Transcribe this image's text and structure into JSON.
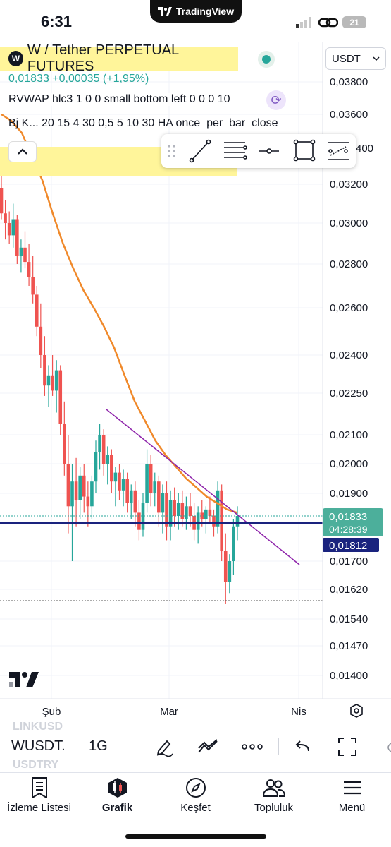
{
  "status_bar": {
    "time": "6:31",
    "app_pill": "TradingView",
    "battery": "21"
  },
  "header": {
    "title": "W / Tether PERPETUAL FUTURES",
    "title_icon": "W",
    "price": "0,01833",
    "change": "+0,00035 (+1,95%)",
    "indicator_1": "RVWAP hlc3 1 0 0 small bottom left 0 0 0 10",
    "indicator_2": "Bj K...  20 15 4 30 0,5 5 10 30 HA once_per_bar_close",
    "currency": "USDT"
  },
  "price_axis": {
    "labels": [
      "0,03800",
      "0,03600",
      "0,03200",
      "0,03000",
      "0,02800",
      "0,02600",
      "0,02400",
      "0,02250",
      "0,02100",
      "0,02000",
      "0,01900",
      "0,01700",
      "0,01620",
      "0,01540",
      "0,01470",
      "0,01400"
    ],
    "partial_label": "400",
    "current_price": "0,01833",
    "countdown": "04:28:39",
    "line_price": "0,01812"
  },
  "time_axis": {
    "labels": [
      "Şub",
      "Mar",
      "Nis"
    ]
  },
  "colors": {
    "up": "#26a69a",
    "down": "#ef5350",
    "ema": "#f0892a",
    "trendline": "#8e24aa",
    "hline": "#1a237e",
    "highlight": "#fff59a"
  },
  "drawing_toolbar": {
    "icons": [
      "drag-handle-icon",
      "trend-line-icon",
      "fib-lines-icon",
      "horizontal-ray-icon",
      "rectangle-icon",
      "pattern-icon"
    ]
  },
  "bottom_toolbar": {
    "ghost_symbol_above": "LINKUSD",
    "symbol": "WUSDT.",
    "interval": "1G",
    "ghost_symbol_below": "USDTRY"
  },
  "nav": {
    "items": [
      {
        "label": "İzleme Listesi",
        "icon": "watchlist-icon"
      },
      {
        "label": "Grafik",
        "icon": "chart-icon"
      },
      {
        "label": "Keşfet",
        "icon": "compass-icon"
      },
      {
        "label": "Topluluk",
        "icon": "community-icon"
      },
      {
        "label": "Menü",
        "icon": "menu-icon"
      }
    ]
  },
  "chart_data": {
    "type": "candlestick",
    "ylim": [
      0.0137,
      0.0394
    ],
    "ema_line": [
      [
        0.036,
        0.0356
      ],
      [
        0.0349,
        0.0335
      ],
      [
        0.0322,
        0.0305
      ],
      [
        0.029,
        0.0278
      ],
      [
        0.0268,
        0.026
      ],
      [
        0.0252,
        0.0243
      ],
      [
        0.0232,
        0.0222
      ],
      [
        0.0215,
        0.0208
      ],
      [
        0.0203,
        0.0199
      ],
      [
        0.0195,
        0.0192
      ],
      [
        0.0189,
        0.0187
      ],
      [
        0.0185,
        0.0184
      ]
    ],
    "candles": [
      {
        "o": 0.0318,
        "h": 0.033,
        "l": 0.0302,
        "c": 0.0305
      },
      {
        "o": 0.0305,
        "h": 0.0312,
        "l": 0.0292,
        "c": 0.03
      },
      {
        "o": 0.03,
        "h": 0.0306,
        "l": 0.029,
        "c": 0.0294
      },
      {
        "o": 0.0294,
        "h": 0.031,
        "l": 0.0288,
        "c": 0.0302
      },
      {
        "o": 0.0302,
        "h": 0.0304,
        "l": 0.028,
        "c": 0.0284
      },
      {
        "o": 0.0284,
        "h": 0.0292,
        "l": 0.0276,
        "c": 0.0288
      },
      {
        "o": 0.0288,
        "h": 0.0296,
        "l": 0.0278,
        "c": 0.0281
      },
      {
        "o": 0.0281,
        "h": 0.029,
        "l": 0.027,
        "c": 0.0274
      },
      {
        "o": 0.0274,
        "h": 0.0284,
        "l": 0.0262,
        "c": 0.0266
      },
      {
        "o": 0.0266,
        "h": 0.027,
        "l": 0.0248,
        "c": 0.0252
      },
      {
        "o": 0.0252,
        "h": 0.0262,
        "l": 0.0235,
        "c": 0.024
      },
      {
        "o": 0.024,
        "h": 0.0248,
        "l": 0.0224,
        "c": 0.0228
      },
      {
        "o": 0.0228,
        "h": 0.0236,
        "l": 0.022,
        "c": 0.0232
      },
      {
        "o": 0.0232,
        "h": 0.024,
        "l": 0.0224,
        "c": 0.0226
      },
      {
        "o": 0.0226,
        "h": 0.0238,
        "l": 0.0218,
        "c": 0.0234
      },
      {
        "o": 0.0234,
        "h": 0.0236,
        "l": 0.021,
        "c": 0.0214
      },
      {
        "o": 0.0214,
        "h": 0.0222,
        "l": 0.0196,
        "c": 0.02
      },
      {
        "o": 0.02,
        "h": 0.021,
        "l": 0.0178,
        "c": 0.0186
      },
      {
        "o": 0.0186,
        "h": 0.02,
        "l": 0.017,
        "c": 0.0194
      },
      {
        "o": 0.0194,
        "h": 0.0202,
        "l": 0.018,
        "c": 0.0188
      },
      {
        "o": 0.0188,
        "h": 0.0199,
        "l": 0.0182,
        "c": 0.0196
      },
      {
        "o": 0.0196,
        "h": 0.02,
        "l": 0.0184,
        "c": 0.0189
      },
      {
        "o": 0.0189,
        "h": 0.0194,
        "l": 0.018,
        "c": 0.0186
      },
      {
        "o": 0.0186,
        "h": 0.0196,
        "l": 0.0182,
        "c": 0.0194
      },
      {
        "o": 0.0194,
        "h": 0.0208,
        "l": 0.019,
        "c": 0.0204
      },
      {
        "o": 0.0204,
        "h": 0.0214,
        "l": 0.0198,
        "c": 0.021
      },
      {
        "o": 0.021,
        "h": 0.0212,
        "l": 0.0196,
        "c": 0.02
      },
      {
        "o": 0.02,
        "h": 0.0206,
        "l": 0.0193,
        "c": 0.0203
      },
      {
        "o": 0.0203,
        "h": 0.0205,
        "l": 0.019,
        "c": 0.0194
      },
      {
        "o": 0.0194,
        "h": 0.0199,
        "l": 0.0186,
        "c": 0.0197
      },
      {
        "o": 0.0197,
        "h": 0.02,
        "l": 0.0188,
        "c": 0.0191
      },
      {
        "o": 0.0191,
        "h": 0.0198,
        "l": 0.0186,
        "c": 0.0195
      },
      {
        "o": 0.0195,
        "h": 0.0197,
        "l": 0.0184,
        "c": 0.0187
      },
      {
        "o": 0.0187,
        "h": 0.0193,
        "l": 0.0182,
        "c": 0.0191
      },
      {
        "o": 0.0191,
        "h": 0.0194,
        "l": 0.018,
        "c": 0.0184
      },
      {
        "o": 0.0184,
        "h": 0.0188,
        "l": 0.0176,
        "c": 0.0179
      },
      {
        "o": 0.0179,
        "h": 0.019,
        "l": 0.0177,
        "c": 0.0187
      },
      {
        "o": 0.0187,
        "h": 0.0205,
        "l": 0.0184,
        "c": 0.02
      },
      {
        "o": 0.02,
        "h": 0.0203,
        "l": 0.0186,
        "c": 0.019
      },
      {
        "o": 0.019,
        "h": 0.0197,
        "l": 0.0186,
        "c": 0.0194
      },
      {
        "o": 0.0194,
        "h": 0.0196,
        "l": 0.018,
        "c": 0.0184
      },
      {
        "o": 0.0184,
        "h": 0.0193,
        "l": 0.0178,
        "c": 0.019
      },
      {
        "o": 0.019,
        "h": 0.0194,
        "l": 0.0176,
        "c": 0.018
      },
      {
        "o": 0.018,
        "h": 0.0191,
        "l": 0.0176,
        "c": 0.0188
      },
      {
        "o": 0.0188,
        "h": 0.0192,
        "l": 0.018,
        "c": 0.0183
      },
      {
        "o": 0.0183,
        "h": 0.019,
        "l": 0.0179,
        "c": 0.0187
      },
      {
        "o": 0.0187,
        "h": 0.0191,
        "l": 0.018,
        "c": 0.0182
      },
      {
        "o": 0.0182,
        "h": 0.0189,
        "l": 0.0179,
        "c": 0.0186
      },
      {
        "o": 0.0186,
        "h": 0.019,
        "l": 0.018,
        "c": 0.0183
      },
      {
        "o": 0.0183,
        "h": 0.0187,
        "l": 0.0176,
        "c": 0.0179
      },
      {
        "o": 0.0179,
        "h": 0.0186,
        "l": 0.0175,
        "c": 0.0184
      },
      {
        "o": 0.0184,
        "h": 0.0188,
        "l": 0.018,
        "c": 0.0182
      },
      {
        "o": 0.0182,
        "h": 0.0186,
        "l": 0.0178,
        "c": 0.0185
      },
      {
        "o": 0.0185,
        "h": 0.0189,
        "l": 0.0181,
        "c": 0.0183
      },
      {
        "o": 0.0183,
        "h": 0.0185,
        "l": 0.0177,
        "c": 0.018
      },
      {
        "o": 0.018,
        "h": 0.0194,
        "l": 0.0178,
        "c": 0.0191
      },
      {
        "o": 0.0191,
        "h": 0.0193,
        "l": 0.017,
        "c": 0.0173
      },
      {
        "o": 0.0173,
        "h": 0.0178,
        "l": 0.0158,
        "c": 0.0164
      },
      {
        "o": 0.0164,
        "h": 0.0172,
        "l": 0.0161,
        "c": 0.017
      },
      {
        "o": 0.017,
        "h": 0.0182,
        "l": 0.0166,
        "c": 0.018
      },
      {
        "o": 0.018,
        "h": 0.0186,
        "l": 0.0176,
        "c": 0.0183
      }
    ]
  }
}
